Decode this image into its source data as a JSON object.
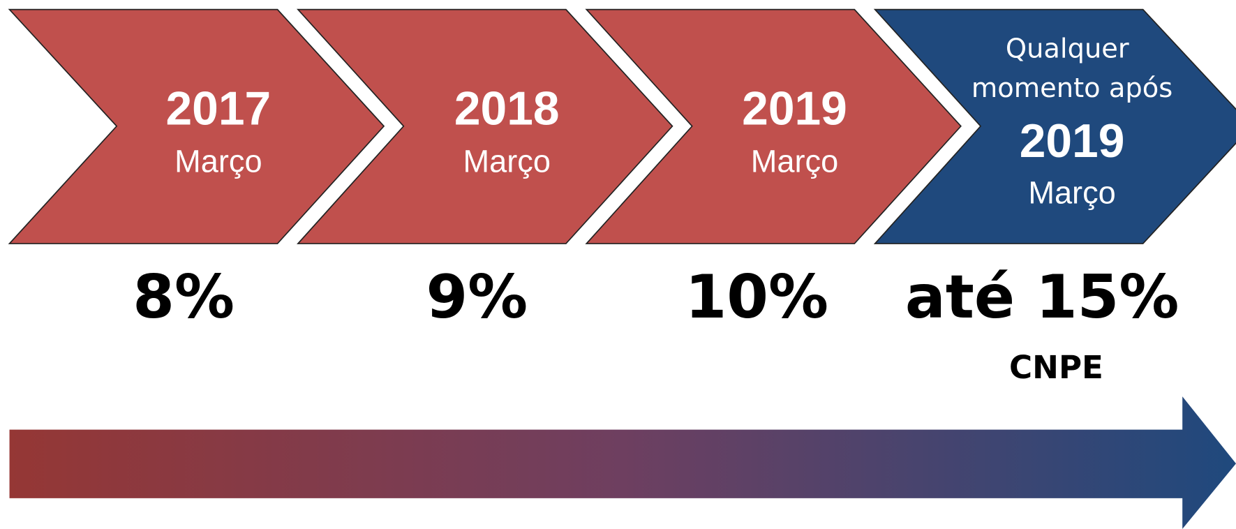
{
  "steps": [
    {
      "year": "2017",
      "month": "Março",
      "percent": "8%"
    },
    {
      "year": "2018",
      "month": "Março",
      "percent": "9%"
    },
    {
      "year": "2019",
      "month": "Março",
      "percent": "10%"
    },
    {
      "label_lines": [
        "Qualquer",
        "momento após"
      ],
      "year": "2019",
      "month": "Março",
      "percent": "até 15%",
      "note": "CNPE"
    }
  ]
}
